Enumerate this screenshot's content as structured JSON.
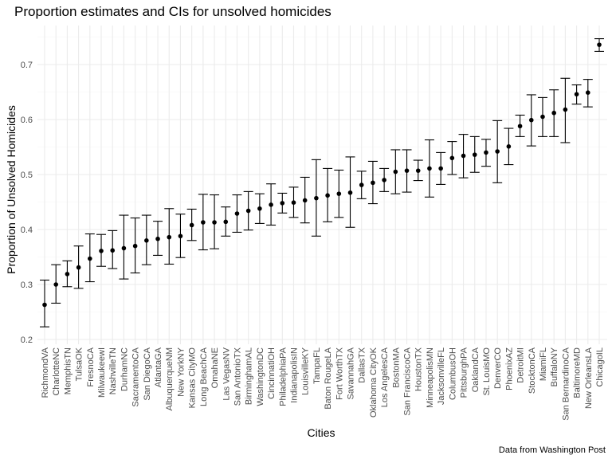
{
  "chart_data": {
    "type": "scatter",
    "title": "Proportion estimates and CIs for unsolved homicides",
    "xlabel": "Cities",
    "ylabel": "Proportion of Unsolved Homicides",
    "caption": "Data from Washington Post",
    "ylim": [
      0.2,
      0.75
    ],
    "yticks": [
      0.2,
      0.3,
      0.4,
      0.5,
      0.6,
      0.7
    ],
    "ytick_labels": [
      "0.2",
      "0.3",
      "0.4",
      "0.5",
      "0.6",
      "0.7"
    ],
    "grid": true,
    "legend": "none",
    "points": [
      {
        "city": "RichmondVA",
        "estimate": 0.263,
        "lower": 0.223,
        "upper": 0.308
      },
      {
        "city": "CharlotteNC",
        "estimate": 0.3,
        "lower": 0.266,
        "upper": 0.336
      },
      {
        "city": "MemphisTN",
        "estimate": 0.319,
        "lower": 0.296,
        "upper": 0.343
      },
      {
        "city": "TulsaOK",
        "estimate": 0.331,
        "lower": 0.293,
        "upper": 0.37
      },
      {
        "city": "FresnoCA",
        "estimate": 0.347,
        "lower": 0.305,
        "upper": 0.392
      },
      {
        "city": "MilwaukeewI",
        "estimate": 0.361,
        "lower": 0.333,
        "upper": 0.391
      },
      {
        "city": "NashvilleTN",
        "estimate": 0.362,
        "lower": 0.329,
        "upper": 0.398
      },
      {
        "city": "DurhamNC",
        "estimate": 0.366,
        "lower": 0.31,
        "upper": 0.426
      },
      {
        "city": "SacramentoCA",
        "estimate": 0.37,
        "lower": 0.321,
        "upper": 0.421
      },
      {
        "city": "San DiegoCA",
        "estimate": 0.38,
        "lower": 0.336,
        "upper": 0.426
      },
      {
        "city": "AtlantaGA",
        "estimate": 0.383,
        "lower": 0.353,
        "upper": 0.415
      },
      {
        "city": "AlbuquerqueNM",
        "estimate": 0.386,
        "lower": 0.337,
        "upper": 0.438
      },
      {
        "city": "New YorkNY",
        "estimate": 0.388,
        "lower": 0.349,
        "upper": 0.428
      },
      {
        "city": "Kansas CityMO",
        "estimate": 0.408,
        "lower": 0.38,
        "upper": 0.437
      },
      {
        "city": "Long BeachCA",
        "estimate": 0.413,
        "lower": 0.363,
        "upper": 0.464
      },
      {
        "city": "OmahaNE",
        "estimate": 0.413,
        "lower": 0.365,
        "upper": 0.463
      },
      {
        "city": "Las VegasNV",
        "estimate": 0.414,
        "lower": 0.388,
        "upper": 0.441
      },
      {
        "city": "San AntonioTX",
        "estimate": 0.429,
        "lower": 0.395,
        "upper": 0.463
      },
      {
        "city": "BirminghamAL",
        "estimate": 0.434,
        "lower": 0.399,
        "upper": 0.469
      },
      {
        "city": "WashingtonDC",
        "estimate": 0.438,
        "lower": 0.411,
        "upper": 0.465
      },
      {
        "city": "CincinnatiOH",
        "estimate": 0.445,
        "lower": 0.408,
        "upper": 0.483
      },
      {
        "city": "PhiladelphiaPA",
        "estimate": 0.448,
        "lower": 0.43,
        "upper": 0.466
      },
      {
        "city": "IndianapolisIN",
        "estimate": 0.449,
        "lower": 0.422,
        "upper": 0.477
      },
      {
        "city": "LouisvilleKY",
        "estimate": 0.453,
        "lower": 0.412,
        "upper": 0.495
      },
      {
        "city": "TampaFL",
        "estimate": 0.457,
        "lower": 0.388,
        "upper": 0.527
      },
      {
        "city": "Baton RougeLA",
        "estimate": 0.462,
        "lower": 0.414,
        "upper": 0.511
      },
      {
        "city": "Fort WorthTX",
        "estimate": 0.465,
        "lower": 0.422,
        "upper": 0.508
      },
      {
        "city": "SavannahGA",
        "estimate": 0.467,
        "lower": 0.404,
        "upper": 0.532
      },
      {
        "city": "DallasTX",
        "estimate": 0.481,
        "lower": 0.456,
        "upper": 0.506
      },
      {
        "city": "Oklahoma CityOK",
        "estimate": 0.485,
        "lower": 0.447,
        "upper": 0.524
      },
      {
        "city": "Los AngelesCA",
        "estimate": 0.49,
        "lower": 0.469,
        "upper": 0.511
      },
      {
        "city": "BostonMA",
        "estimate": 0.505,
        "lower": 0.465,
        "upper": 0.545
      },
      {
        "city": "San FranciscoCA",
        "estimate": 0.507,
        "lower": 0.468,
        "upper": 0.545
      },
      {
        "city": "HoustonTX",
        "estimate": 0.507,
        "lower": 0.489,
        "upper": 0.526
      },
      {
        "city": "MinneapolisMN",
        "estimate": 0.511,
        "lower": 0.459,
        "upper": 0.563
      },
      {
        "city": "JacksonvilleFL",
        "estimate": 0.511,
        "lower": 0.482,
        "upper": 0.54
      },
      {
        "city": "ColumbusOH",
        "estimate": 0.53,
        "lower": 0.5,
        "upper": 0.56
      },
      {
        "city": "PittsburghPA",
        "estimate": 0.534,
        "lower": 0.494,
        "upper": 0.573
      },
      {
        "city": "OaklandCA",
        "estimate": 0.536,
        "lower": 0.504,
        "upper": 0.569
      },
      {
        "city": "St. LouisMO",
        "estimate": 0.54,
        "lower": 0.515,
        "upper": 0.564
      },
      {
        "city": "DenverCO",
        "estimate": 0.542,
        "lower": 0.485,
        "upper": 0.598
      },
      {
        "city": "PhoenixAZ",
        "estimate": 0.551,
        "lower": 0.518,
        "upper": 0.584
      },
      {
        "city": "DetroitMI",
        "estimate": 0.588,
        "lower": 0.569,
        "upper": 0.608
      },
      {
        "city": "StocktonCA",
        "estimate": 0.599,
        "lower": 0.552,
        "upper": 0.645
      },
      {
        "city": "MiamiFL",
        "estimate": 0.605,
        "lower": 0.569,
        "upper": 0.64
      },
      {
        "city": "BuffaloNY",
        "estimate": 0.612,
        "lower": 0.569,
        "upper": 0.654
      },
      {
        "city": "San BernardinoCA",
        "estimate": 0.618,
        "lower": 0.558,
        "upper": 0.675
      },
      {
        "city": "BaltimoreMD",
        "estimate": 0.646,
        "lower": 0.628,
        "upper": 0.663
      },
      {
        "city": "New OrleansLA",
        "estimate": 0.649,
        "lower": 0.623,
        "upper": 0.673
      },
      {
        "city": "ChicagoIL",
        "estimate": 0.736,
        "lower": 0.724,
        "upper": 0.747
      }
    ]
  }
}
